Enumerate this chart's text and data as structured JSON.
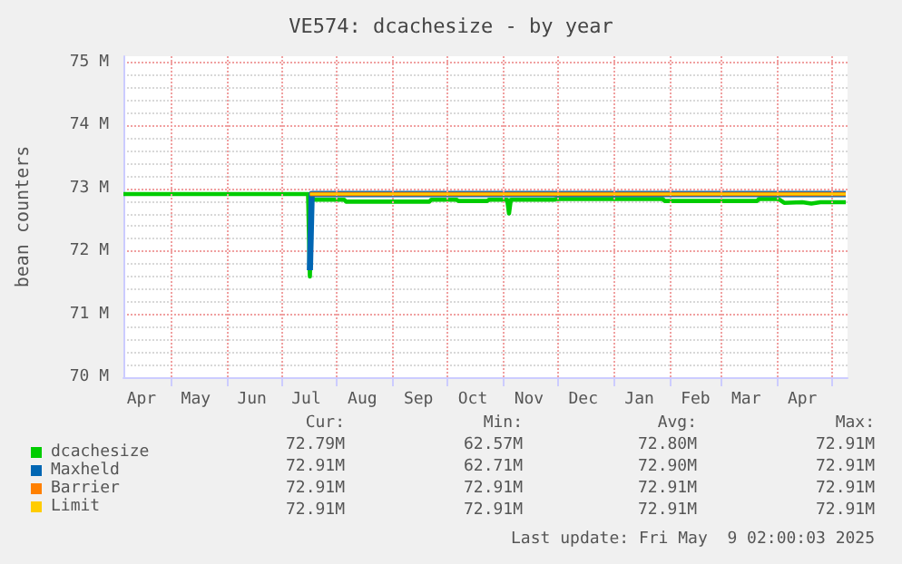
{
  "chart_data": {
    "type": "line",
    "title": "VE574: dcachesize - by year",
    "ylabel": "bean counters",
    "xlim": [
      "2024-04-05",
      "2025-05-10"
    ],
    "ylim": [
      70,
      75.1
    ],
    "yticks": [
      {
        "value": 70,
        "label": "70 M"
      },
      {
        "value": 71,
        "label": "71 M"
      },
      {
        "value": 72,
        "label": "72 M"
      },
      {
        "value": 73,
        "label": "73 M"
      },
      {
        "value": 74,
        "label": "74 M"
      },
      {
        "value": 75,
        "label": "75 M"
      }
    ],
    "xticks": [
      {
        "value": "2024-04-15",
        "label": "Apr"
      },
      {
        "value": "2024-05-01",
        "label": null
      },
      {
        "value": "2024-05-15",
        "label": "May"
      },
      {
        "value": "2024-06-01",
        "label": null
      },
      {
        "value": "2024-06-15",
        "label": "Jun"
      },
      {
        "value": "2024-07-01",
        "label": null
      },
      {
        "value": "2024-07-15",
        "label": "Jul"
      },
      {
        "value": "2024-08-01",
        "label": null
      },
      {
        "value": "2024-08-15",
        "label": "Aug"
      },
      {
        "value": "2024-09-01",
        "label": null
      },
      {
        "value": "2024-09-15",
        "label": "Sep"
      },
      {
        "value": "2024-10-01",
        "label": null
      },
      {
        "value": "2024-10-15",
        "label": "Oct"
      },
      {
        "value": "2024-11-01",
        "label": null
      },
      {
        "value": "2024-11-15",
        "label": "Nov"
      },
      {
        "value": "2024-12-01",
        "label": null
      },
      {
        "value": "2024-12-15",
        "label": "Dec"
      },
      {
        "value": "2025-01-01",
        "label": null
      },
      {
        "value": "2025-01-15",
        "label": "Jan"
      },
      {
        "value": "2025-02-01",
        "label": null
      },
      {
        "value": "2025-02-15",
        "label": "Feb"
      },
      {
        "value": "2025-03-01",
        "label": null
      },
      {
        "value": "2025-03-15",
        "label": "Mar"
      },
      {
        "value": "2025-04-01",
        "label": null
      },
      {
        "value": "2025-04-15",
        "label": "Apr"
      },
      {
        "value": "2025-05-01",
        "label": null
      }
    ],
    "grid": true,
    "legend": "bottom",
    "marker": "none",
    "line_style": "solid",
    "series": [
      {
        "name": "dcachesize",
        "color": "#00cc00",
        "x": [
          "2024-04-05",
          "2024-07-16",
          "2024-07-17",
          "2024-07-18",
          "2024-08-05",
          "2024-08-06",
          "2024-09-21",
          "2024-09-22",
          "2024-10-06",
          "2024-10-07",
          "2024-10-23",
          "2024-10-24",
          "2024-11-03",
          "2024-11-04",
          "2024-11-05",
          "2024-11-29",
          "2024-11-30",
          "2025-01-28",
          "2025-01-29",
          "2025-03-21",
          "2025-03-22",
          "2025-04-02",
          "2025-04-05",
          "2025-04-15",
          "2025-04-20",
          "2025-04-25",
          "2025-05-09"
        ],
        "values": [
          72.91,
          72.91,
          71.6,
          72.82,
          72.82,
          72.79,
          72.79,
          72.82,
          72.82,
          72.8,
          72.8,
          72.82,
          72.82,
          72.6,
          72.82,
          72.82,
          72.83,
          72.83,
          72.8,
          72.8,
          72.83,
          72.83,
          72.77,
          72.78,
          72.76,
          72.78,
          72.78
        ]
      },
      {
        "name": "Maxheld",
        "color": "#0066b3",
        "x": [
          "2024-07-17",
          "2024-07-18",
          "2025-05-09"
        ],
        "values": [
          71.7,
          72.91,
          72.91
        ]
      },
      {
        "name": "Barrier",
        "color": "#ff8000",
        "x": [
          "2024-07-17",
          "2025-05-09"
        ],
        "values": [
          72.91,
          72.91
        ]
      },
      {
        "name": "Limit",
        "color": "#ffcc00",
        "x": [
          "2024-07-17",
          "2025-05-09"
        ],
        "values": [
          72.91,
          72.91
        ]
      }
    ],
    "annotations": [
      "Cur:",
      "Min:",
      "Avg:",
      "Max:",
      "72.79M",
      "62.57M",
      "72.80M",
      "72.91M",
      "72.91M",
      "62.71M",
      "72.90M",
      "72.91M",
      "72.91M",
      "72.91M",
      "72.91M",
      "72.91M",
      "72.91M",
      "72.91M",
      "72.91M",
      "72.91M",
      "Last update: Fri May  9 02:00:03 2025"
    ]
  }
}
